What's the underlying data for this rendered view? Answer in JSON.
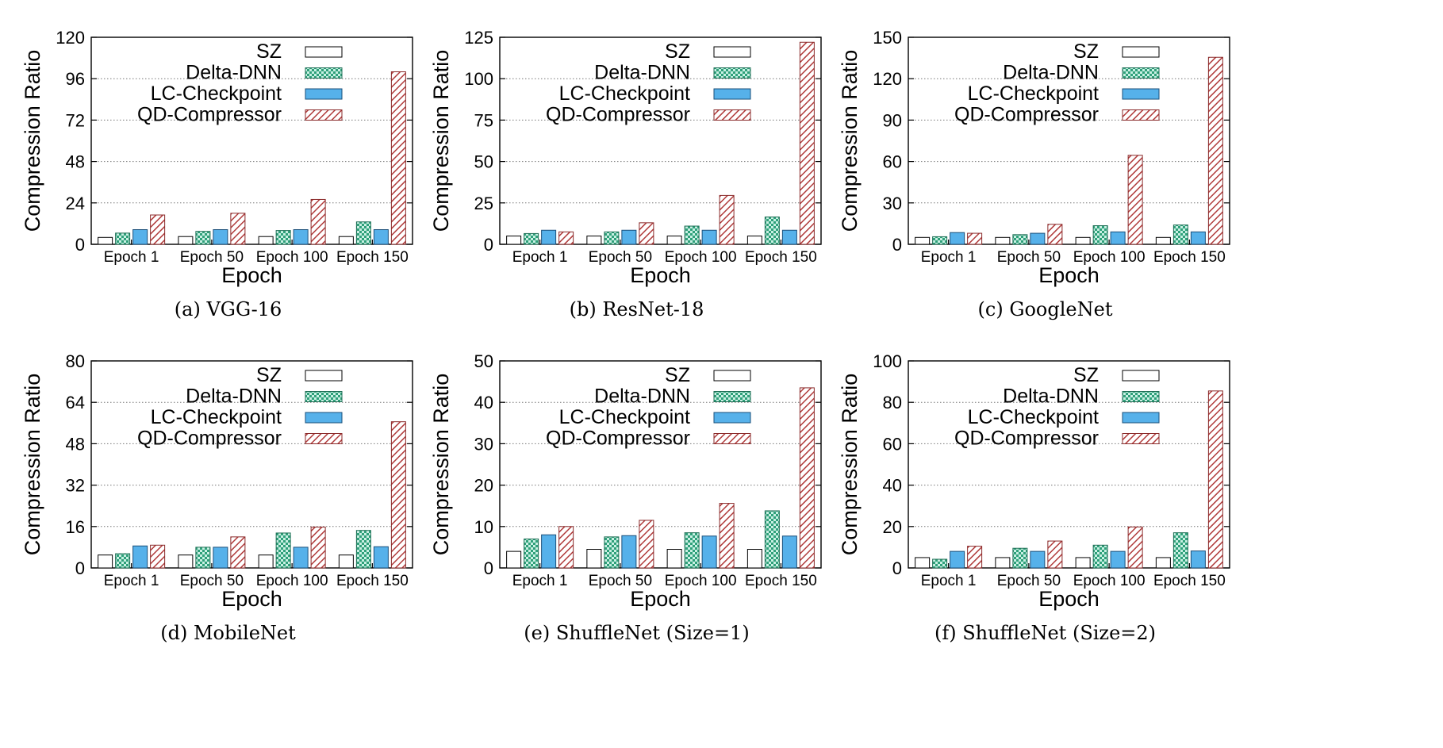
{
  "figure": {
    "legend": [
      {
        "name": "SZ",
        "color": "#ffffff",
        "pattern": "none"
      },
      {
        "name": "Delta-DNN",
        "color": "#7fd6bc",
        "pattern": "checker"
      },
      {
        "name": "LC-Checkpoint",
        "color": "#4aa3df",
        "pattern": "none"
      },
      {
        "name": "QD-Compressor",
        "color": "#c0392b",
        "pattern": "diagonal"
      }
    ]
  },
  "chart_data": [
    {
      "type": "bar",
      "caption": "(a)  VGG-16",
      "categories": [
        "Epoch 1",
        "Epoch 50",
        "Epoch 100",
        "Epoch 150"
      ],
      "xlabel": "Epoch",
      "ylabel": "Compression Ratio",
      "ylim": [
        0,
        120
      ],
      "yticks": [
        "0",
        "24",
        "48",
        "72",
        "96",
        "120"
      ],
      "grid": "horizontal dotted",
      "legend_position": "top-right",
      "series": [
        {
          "name": "SZ",
          "values": [
            4,
            4.5,
            4.5,
            4.5
          ]
        },
        {
          "name": "Delta-DNN",
          "values": [
            6.5,
            7.5,
            8,
            13
          ]
        },
        {
          "name": "LC-Checkpoint",
          "values": [
            8.5,
            8.5,
            8.5,
            8.5
          ]
        },
        {
          "name": "QD-Compressor",
          "values": [
            17,
            18,
            26,
            100
          ]
        }
      ]
    },
    {
      "type": "bar",
      "caption": "(b)  ResNet-18",
      "categories": [
        "Epoch 1",
        "Epoch 50",
        "Epoch 100",
        "Epoch 150"
      ],
      "xlabel": "Epoch",
      "ylabel": "Compression Ratio",
      "ylim": [
        0,
        125
      ],
      "yticks": [
        "0",
        "25",
        "50",
        "75",
        "100",
        "125"
      ],
      "grid": "horizontal dotted",
      "legend_position": "top-right",
      "series": [
        {
          "name": "SZ",
          "values": [
            5,
            5,
            5,
            5
          ]
        },
        {
          "name": "Delta-DNN",
          "values": [
            6.5,
            7.5,
            11,
            16.5
          ]
        },
        {
          "name": "LC-Checkpoint",
          "values": [
            8.5,
            8.5,
            8.5,
            8.5
          ]
        },
        {
          "name": "QD-Compressor",
          "values": [
            7.5,
            13,
            29.5,
            122
          ]
        }
      ]
    },
    {
      "type": "bar",
      "caption": "(c)  GoogleNet",
      "categories": [
        "Epoch 1",
        "Epoch 50",
        "Epoch 100",
        "Epoch 150"
      ],
      "xlabel": "Epoch",
      "ylabel": "Compression Ratio",
      "ylim": [
        0,
        150
      ],
      "yticks": [
        "0",
        "30",
        "60",
        "90",
        "120",
        "150"
      ],
      "grid": "horizontal dotted",
      "legend_position": "top-right",
      "series": [
        {
          "name": "SZ",
          "values": [
            5,
            5,
            5,
            5
          ]
        },
        {
          "name": "Delta-DNN",
          "values": [
            5.5,
            7,
            13.5,
            14
          ]
        },
        {
          "name": "LC-Checkpoint",
          "values": [
            8.5,
            8,
            9,
            9
          ]
        },
        {
          "name": "QD-Compressor",
          "values": [
            8,
            14.5,
            64.5,
            135.5
          ]
        }
      ]
    },
    {
      "type": "bar",
      "caption": "(d)  MobileNet",
      "categories": [
        "Epoch 1",
        "Epoch 50",
        "Epoch 100",
        "Epoch 150"
      ],
      "xlabel": "Epoch",
      "ylabel": "Compression Ratio",
      "ylim": [
        0,
        80
      ],
      "yticks": [
        "0",
        "16",
        "32",
        "48",
        "64",
        "80"
      ],
      "grid": "horizontal dotted",
      "legend_position": "top-right",
      "series": [
        {
          "name": "SZ",
          "values": [
            5,
            5,
            5,
            5
          ]
        },
        {
          "name": "Delta-DNN",
          "values": [
            5.5,
            8,
            13.5,
            14.5
          ]
        },
        {
          "name": "LC-Checkpoint",
          "values": [
            8.5,
            8,
            8,
            8.2
          ]
        },
        {
          "name": "QD-Compressor",
          "values": [
            8.8,
            12,
            15.8,
            56.5
          ]
        }
      ]
    },
    {
      "type": "bar",
      "caption": "(e)  ShuffleNet (Size=1)",
      "categories": [
        "Epoch 1",
        "Epoch 50",
        "Epoch 100",
        "Epoch 150"
      ],
      "xlabel": "Epoch",
      "ylabel": "Compression Ratio",
      "ylim": [
        0,
        50
      ],
      "yticks": [
        "0",
        "10",
        "20",
        "30",
        "40",
        "50"
      ],
      "grid": "horizontal dotted",
      "legend_position": "top-right",
      "series": [
        {
          "name": "SZ",
          "values": [
            4,
            4.5,
            4.5,
            4.5
          ]
        },
        {
          "name": "Delta-DNN",
          "values": [
            7,
            7.5,
            8.5,
            13.8
          ]
        },
        {
          "name": "LC-Checkpoint",
          "values": [
            8,
            7.8,
            7.7,
            7.7
          ]
        },
        {
          "name": "QD-Compressor",
          "values": [
            10,
            11.5,
            15.6,
            43.5
          ]
        }
      ]
    },
    {
      "type": "bar",
      "caption": "(f)  ShuffleNet (Size=2)",
      "categories": [
        "Epoch 1",
        "Epoch 50",
        "Epoch 100",
        "Epoch 150"
      ],
      "xlabel": "Epoch",
      "ylabel": "Compression Ratio",
      "ylim": [
        0,
        100
      ],
      "yticks": [
        "0",
        "20",
        "40",
        "60",
        "80",
        "100"
      ],
      "grid": "horizontal dotted",
      "legend_position": "top-right",
      "series": [
        {
          "name": "SZ",
          "values": [
            5,
            5,
            5,
            5
          ]
        },
        {
          "name": "Delta-DNN",
          "values": [
            4.2,
            9.5,
            11,
            17
          ]
        },
        {
          "name": "LC-Checkpoint",
          "values": [
            8,
            8,
            8,
            8.2
          ]
        },
        {
          "name": "QD-Compressor",
          "values": [
            10.5,
            13,
            19.8,
            85.5
          ]
        }
      ]
    }
  ]
}
